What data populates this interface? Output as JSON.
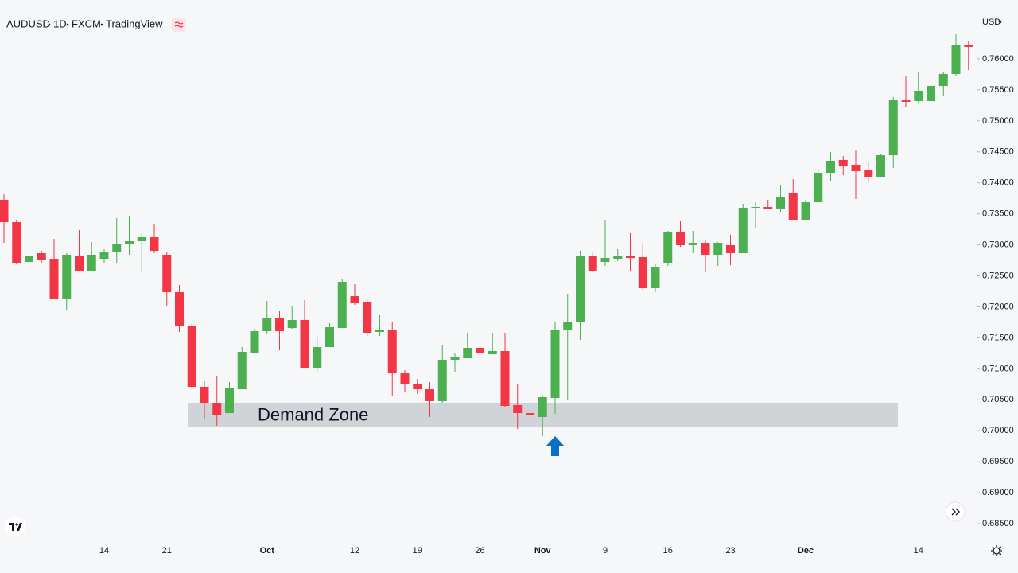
{
  "chart_data": {
    "type": "candlestick",
    "symbol": "AUDUSD",
    "interval": "1D",
    "exchange": "FXCM",
    "source": "TradingView",
    "currency": "USD",
    "annotation": "Demand Zone",
    "zone": [
      0.70054,
      0.70452
    ],
    "up_color": "#4caf50",
    "down_color": "#f23645",
    "categories": [
      null,
      null,
      null,
      null,
      null,
      null,
      null,
      null,
      "14",
      null,
      null,
      null,
      null,
      "21",
      null,
      null,
      null,
      null,
      null,
      null,
      null,
      "Oct",
      null,
      null,
      null,
      null,
      null,
      null,
      "12",
      null,
      null,
      null,
      null,
      "19",
      null,
      null,
      null,
      null,
      "26",
      null,
      null,
      null,
      null,
      "Nov",
      null,
      null,
      null,
      null,
      "9",
      null,
      null,
      null,
      null,
      "16",
      null,
      null,
      null,
      null,
      "23",
      null,
      null,
      null,
      null,
      null,
      "Dec",
      null,
      null,
      null,
      null,
      null,
      null,
      null,
      null,
      "14",
      null,
      null,
      null,
      null
    ],
    "open": [
      0.73727,
      0.73367,
      0.72725,
      0.72866,
      0.72764,
      0.72122,
      0.72815,
      0.72571,
      0.72764,
      0.72879,
      0.73008,
      0.73059,
      0.73123,
      0.72841,
      0.72237,
      0.71685,
      0.70709,
      0.70439,
      0.70285,
      0.7067,
      0.71261,
      0.71608,
      0.71826,
      0.71659,
      0.71788,
      0.71004,
      0.71351,
      0.71659,
      0.72173,
      0.7207,
      0.71595,
      0.71621,
      0.70927,
      0.70748,
      0.7067,
      0.70478,
      0.71146,
      0.71171,
      0.71338,
      0.71235,
      0.71287,
      0.70414,
      0.70285,
      0.70221,
      0.70529,
      0.71621,
      0.71762,
      0.72815,
      0.72725,
      0.72777,
      0.72815,
      0.72802,
      0.72301,
      0.727,
      0.732,
      0.72995,
      0.73033,
      0.72841,
      0.72995,
      0.72866,
      0.73599,
      0.73611,
      0.73586,
      0.73842,
      0.73406,
      0.73688,
      0.74151,
      0.74369,
      0.74292,
      0.74202,
      0.74099,
      0.74446,
      0.75332,
      0.75319,
      0.75319,
      0.75563,
      0.75756,
      0.76218
    ],
    "high": [
      0.73817,
      0.73393,
      0.72892,
      0.72892,
      0.73098,
      0.72866,
      0.73239,
      0.73046,
      0.72931,
      0.73432,
      0.7347,
      0.73175,
      0.73342,
      0.72879,
      0.72353,
      0.71724,
      0.70799,
      0.70889,
      0.70786,
      0.71351,
      0.71646,
      0.72096,
      0.71929,
      0.72006,
      0.72109,
      0.71505,
      0.71736,
      0.72443,
      0.72366,
      0.72122,
      0.71865,
      0.71762,
      0.70979,
      0.70837,
      0.70786,
      0.71377,
      0.71248,
      0.71582,
      0.71454,
      0.71569,
      0.71569,
      0.7076,
      0.70722,
      0.70555,
      0.71762,
      0.72212,
      0.72892,
      0.72879,
      0.73406,
      0.72931,
      0.73188,
      0.73033,
      0.72687,
      0.73226,
      0.7338,
      0.73226,
      0.73072,
      0.73046,
      0.73162,
      0.73663,
      0.73688,
      0.73727,
      0.73971,
      0.74061,
      0.73727,
      0.74215,
      0.74497,
      0.74433,
      0.74536,
      0.7433,
      0.74459,
      0.75384,
      0.75717,
      0.75795,
      0.75628,
      0.75795,
      0.76398,
      0.76283
    ],
    "low": [
      0.73033,
      0.72687,
      0.72237,
      0.72712,
      0.72122,
      0.71942,
      0.72584,
      0.72571,
      0.72712,
      0.72712,
      0.72841,
      0.72558,
      0.72866,
      0.72006,
      0.71595,
      0.70683,
      0.70182,
      0.7008,
      0.70285,
      0.7067,
      0.71261,
      0.71557,
      0.713,
      0.71634,
      0.71004,
      0.70953,
      0.71351,
      0.71659,
      0.72032,
      0.71531,
      0.71531,
      0.70568,
      0.70632,
      0.70593,
      0.70221,
      0.70439,
      0.7094,
      0.71171,
      0.71197,
      0.71235,
      0.70375,
      0.70028,
      0.70105,
      0.69913,
      0.70272,
      0.70504,
      0.71467,
      0.72558,
      0.72661,
      0.72738,
      0.72584,
      0.72276,
      0.72237,
      0.72661,
      0.72969,
      0.72866,
      0.72558,
      0.72661,
      0.72674,
      0.72866,
      0.73277,
      0.73573,
      0.73534,
      0.73406,
      0.73406,
      0.73688,
      0.74022,
      0.74125,
      0.7374,
      0.74009,
      0.74099,
      0.74241,
      0.75229,
      0.75281,
      0.75088,
      0.75396,
      0.75717,
      0.7582
    ],
    "close": [
      0.73367,
      0.72712,
      0.72815,
      0.72751,
      0.72122,
      0.72828,
      0.72584,
      0.72828,
      0.72879,
      0.73021,
      0.73059,
      0.73123,
      0.72892,
      0.72237,
      0.71685,
      0.70709,
      0.70439,
      0.70247,
      0.70696,
      0.71274,
      0.71608,
      0.71826,
      0.71608,
      0.71788,
      0.71004,
      0.71351,
      0.71672,
      0.72404,
      0.72057,
      0.71582,
      0.71621,
      0.70927,
      0.7076,
      0.7067,
      0.70478,
      0.71146,
      0.71184,
      0.71338,
      0.71248,
      0.71287,
      0.70401,
      0.70285,
      0.7026,
      0.70542,
      0.71621,
      0.71762,
      0.72815,
      0.72584,
      0.72789,
      0.72815,
      0.72789,
      0.72301,
      0.72648,
      0.732,
      0.72995,
      0.73033,
      0.72841,
      0.73033,
      0.72866,
      0.73599,
      0.73611,
      0.73586,
      0.73765,
      0.73406,
      0.73688,
      0.74151,
      0.74356,
      0.74266,
      0.74189,
      0.74099,
      0.74446,
      0.75332,
      0.75307,
      0.75486,
      0.75563,
      0.75756,
      0.76218,
      0.76193
    ],
    "ylim": [
      0.68218,
      0.7695
    ],
    "yticks": [
      {
        "value": 0.685,
        "label": "0.68500"
      },
      {
        "value": 0.69,
        "label": "0.69000"
      },
      {
        "value": 0.695,
        "label": "0.69500"
      },
      {
        "value": 0.7,
        "label": "0.70000"
      },
      {
        "value": 0.705,
        "label": "0.70500"
      },
      {
        "value": 0.71,
        "label": "0.71000"
      },
      {
        "value": 0.715,
        "label": "0.71500"
      },
      {
        "value": 0.72,
        "label": "0.72000"
      },
      {
        "value": 0.725,
        "label": "0.72500"
      },
      {
        "value": 0.73,
        "label": "0.73000"
      },
      {
        "value": 0.735,
        "label": "0.73500"
      },
      {
        "value": 0.74,
        "label": "0.74000"
      },
      {
        "value": 0.745,
        "label": "0.74500"
      },
      {
        "value": 0.75,
        "label": "0.75000"
      },
      {
        "value": 0.755,
        "label": "0.75500"
      },
      {
        "value": 0.76,
        "label": "0.76000"
      }
    ]
  }
}
